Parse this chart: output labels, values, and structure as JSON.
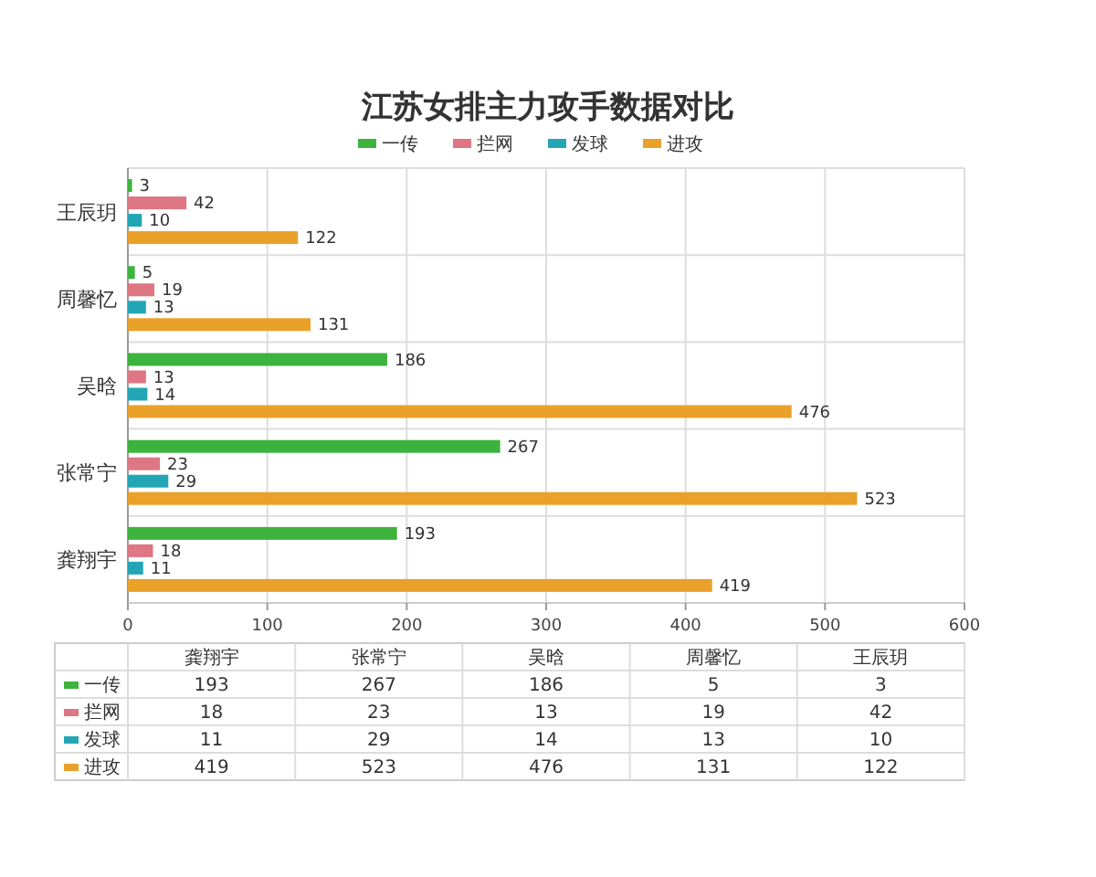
{
  "chart_data": [
    {
      "type": "bar",
      "orientation": "horizontal",
      "title": "江苏女排主力攻手数据对比",
      "categories": [
        "王辰玥",
        "周馨忆",
        "吴晗",
        "张常宁",
        "龚翔宇"
      ],
      "series": [
        {
          "name": "一传",
          "color": "#3db33d",
          "values": [
            3,
            5,
            186,
            267,
            193
          ]
        },
        {
          "name": "拦网",
          "color": "#de7683",
          "values": [
            42,
            19,
            13,
            23,
            18
          ]
        },
        {
          "name": "发球",
          "color": "#22a6b5",
          "values": [
            10,
            13,
            14,
            29,
            11
          ]
        },
        {
          "name": "进攻",
          "color": "#e9a12a",
          "values": [
            122,
            131,
            476,
            523,
            419
          ]
        }
      ],
      "xlim": [
        0,
        600
      ],
      "xticks": [
        0,
        100,
        200,
        300,
        400,
        500,
        600
      ],
      "grid": true,
      "legend": "top",
      "data_labels": true
    },
    {
      "type": "other",
      "categories": [
        "龚翔宇",
        "张常宁",
        "吴晗",
        "周馨忆",
        "王辰玥"
      ],
      "series": [
        {
          "name": "一传",
          "color": "#3db33d",
          "values": [
            193,
            267,
            186,
            5,
            3
          ]
        },
        {
          "name": "拦网",
          "color": "#de7683",
          "values": [
            18,
            23,
            13,
            19,
            42
          ]
        },
        {
          "name": "发球",
          "color": "#22a6b5",
          "values": [
            11,
            29,
            14,
            13,
            10
          ]
        },
        {
          "name": "进攻",
          "color": "#e9a12a",
          "values": [
            419,
            523,
            476,
            131,
            122
          ]
        }
      ],
      "data_labels": true
    }
  ]
}
